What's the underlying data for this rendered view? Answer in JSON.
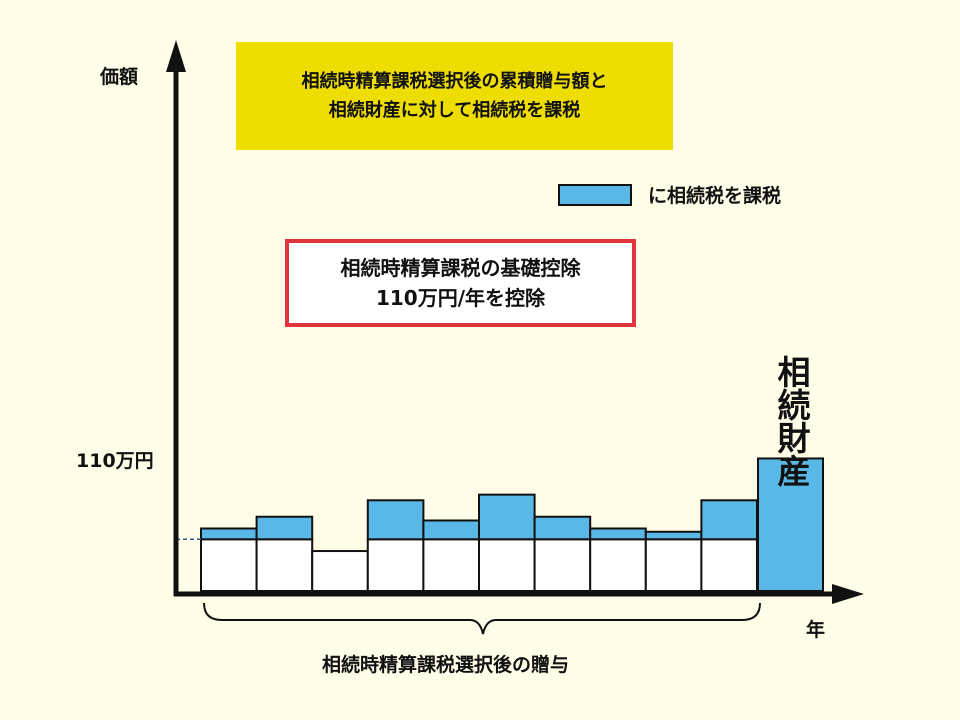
{
  "axes": {
    "y_label": "価額",
    "x_label": "年"
  },
  "yellow_box": {
    "line1": "相続時精算課税選択後の累積贈与額と",
    "line2": "相続財産に対して相続税を課税"
  },
  "red_box": {
    "line1": "相続時精算課税の基礎控除",
    "line2": "110万円/年を控除"
  },
  "legend": {
    "text": "に相続税を課税",
    "color": "#5ab8e6"
  },
  "reference_line": {
    "label": "110万円",
    "value": 110
  },
  "brace_label": "相続時精算課税選択後の贈与",
  "estate": {
    "label": "相続財産"
  },
  "colors": {
    "taxed": "#5ab8e6",
    "exempt": "#ffffff",
    "outline": "#111111",
    "red_frame": "#e0343f",
    "yellow": "#eedd00",
    "background": "#fffde8"
  },
  "chart_data": {
    "type": "bar",
    "stacked": true,
    "ylabel": "価額",
    "xlabel": "年",
    "ylim": [
      0,
      520
    ],
    "reference": {
      "label": "110万円",
      "value": 110
    },
    "gifts": [
      {
        "total": 133
      },
      {
        "total": 158
      },
      {
        "total": 85
      },
      {
        "total": 193
      },
      {
        "total": 150
      },
      {
        "total": 205
      },
      {
        "total": 158
      },
      {
        "total": 133
      },
      {
        "total": 126
      },
      {
        "total": 193
      }
    ],
    "estate": {
      "label": "相続財産",
      "value": 282
    }
  }
}
